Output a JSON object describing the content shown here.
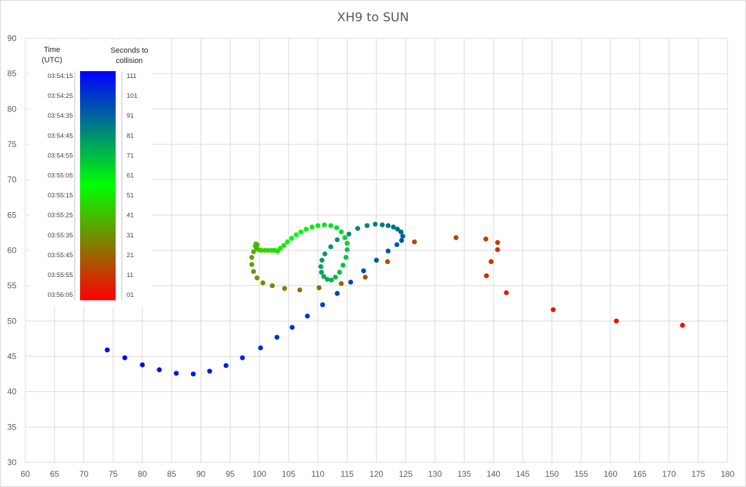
{
  "chart_data": {
    "type": "scatter",
    "title": "XH9 to SUN",
    "xlabel": "",
    "ylabel": "",
    "xlim": [
      60,
      180
    ],
    "ylim": [
      30,
      90
    ],
    "xticks": [
      "60",
      "65",
      "70",
      "75",
      "80",
      "85",
      "90",
      "95",
      "100",
      "105",
      "110",
      "115",
      "120",
      "125",
      "130",
      "135",
      "140",
      "145",
      "150",
      "155",
      "160",
      "165",
      "170",
      "175",
      "180"
    ],
    "yticks": [
      "30",
      "35",
      "40",
      "45",
      "50",
      "55",
      "60",
      "65",
      "70",
      "75",
      "80",
      "85",
      "90"
    ],
    "grid": true,
    "legend": {
      "placement": "top-left",
      "time_header_line1": "Time",
      "time_header_line2": "(UTC)",
      "seconds_header_line1": "Seconds to",
      "seconds_header_line2": "collision",
      "time_labels": [
        "03:54:15",
        "03:54:25",
        "03:54:35",
        "03:54:45",
        "03:54:55",
        "03:55:05",
        "03:55:15",
        "03:55:25",
        "03:55:35",
        "03:55:45",
        "03:55:55",
        "03:56:05"
      ],
      "seconds_labels": [
        "111",
        "101",
        "91",
        "81",
        "71",
        "61",
        "51",
        "41",
        "31",
        "21",
        "11",
        "01"
      ],
      "gradient_colors": [
        "#0000ff",
        "#008080",
        "#00ff00",
        "#808000",
        "#ff0000"
      ]
    },
    "seconds_range": [
      111,
      1
    ],
    "points": [
      {
        "x": 74.0,
        "y": 45.9,
        "s": 111
      },
      {
        "x": 77.0,
        "y": 44.8,
        "s": 110
      },
      {
        "x": 80.0,
        "y": 43.8,
        "s": 109
      },
      {
        "x": 82.9,
        "y": 43.1,
        "s": 108
      },
      {
        "x": 85.8,
        "y": 42.6,
        "s": 107
      },
      {
        "x": 88.7,
        "y": 42.5,
        "s": 106
      },
      {
        "x": 91.5,
        "y": 42.9,
        "s": 105
      },
      {
        "x": 94.3,
        "y": 43.7,
        "s": 104
      },
      {
        "x": 97.1,
        "y": 44.8,
        "s": 103
      },
      {
        "x": 100.2,
        "y": 46.2,
        "s": 102
      },
      {
        "x": 103.0,
        "y": 47.7,
        "s": 101
      },
      {
        "x": 105.6,
        "y": 49.1,
        "s": 100
      },
      {
        "x": 108.2,
        "y": 50.7,
        "s": 99
      },
      {
        "x": 110.8,
        "y": 52.3,
        "s": 98
      },
      {
        "x": 113.3,
        "y": 53.9,
        "s": 97
      },
      {
        "x": 115.6,
        "y": 55.5,
        "s": 96
      },
      {
        "x": 117.8,
        "y": 57.1,
        "s": 95
      },
      {
        "x": 120.0,
        "y": 58.6,
        "s": 94
      },
      {
        "x": 122.0,
        "y": 59.9,
        "s": 93
      },
      {
        "x": 123.5,
        "y": 60.8,
        "s": 92
      },
      {
        "x": 124.3,
        "y": 61.4,
        "s": 91
      },
      {
        "x": 124.5,
        "y": 62.0,
        "s": 90
      },
      {
        "x": 124.2,
        "y": 62.6,
        "s": 89
      },
      {
        "x": 123.6,
        "y": 63.0,
        "s": 88
      },
      {
        "x": 122.9,
        "y": 63.3,
        "s": 87
      },
      {
        "x": 122.0,
        "y": 63.5,
        "s": 86
      },
      {
        "x": 121.0,
        "y": 63.6,
        "s": 85
      },
      {
        "x": 119.8,
        "y": 63.7,
        "s": 84
      },
      {
        "x": 118.4,
        "y": 63.5,
        "s": 83
      },
      {
        "x": 116.8,
        "y": 63.1,
        "s": 82
      },
      {
        "x": 115.3,
        "y": 62.3,
        "s": 81
      },
      {
        "x": 113.3,
        "y": 61.5,
        "s": 80
      },
      {
        "x": 112.2,
        "y": 60.5,
        "s": 79
      },
      {
        "x": 111.2,
        "y": 59.5,
        "s": 78
      },
      {
        "x": 110.7,
        "y": 58.6,
        "s": 77
      },
      {
        "x": 110.5,
        "y": 57.7,
        "s": 76
      },
      {
        "x": 110.6,
        "y": 56.9,
        "s": 75
      },
      {
        "x": 111.0,
        "y": 56.3,
        "s": 74
      },
      {
        "x": 111.6,
        "y": 55.9,
        "s": 73
      },
      {
        "x": 112.3,
        "y": 55.8,
        "s": 72
      },
      {
        "x": 113.0,
        "y": 56.2,
        "s": 71
      },
      {
        "x": 113.7,
        "y": 56.9,
        "s": 70
      },
      {
        "x": 114.3,
        "y": 57.9,
        "s": 69
      },
      {
        "x": 114.8,
        "y": 59.0,
        "s": 68
      },
      {
        "x": 115.0,
        "y": 60.1,
        "s": 67
      },
      {
        "x": 115.0,
        "y": 61.0,
        "s": 66
      },
      {
        "x": 114.6,
        "y": 61.8,
        "s": 65
      },
      {
        "x": 114.0,
        "y": 62.6,
        "s": 64
      },
      {
        "x": 113.2,
        "y": 63.2,
        "s": 63
      },
      {
        "x": 112.2,
        "y": 63.5,
        "s": 62
      },
      {
        "x": 111.1,
        "y": 63.6,
        "s": 61
      },
      {
        "x": 110.0,
        "y": 63.5,
        "s": 60
      },
      {
        "x": 109.0,
        "y": 63.3,
        "s": 59
      },
      {
        "x": 108.0,
        "y": 63.0,
        "s": 58
      },
      {
        "x": 107.1,
        "y": 62.6,
        "s": 57
      },
      {
        "x": 106.3,
        "y": 62.2,
        "s": 56
      },
      {
        "x": 105.5,
        "y": 61.7,
        "s": 55
      },
      {
        "x": 104.8,
        "y": 61.2,
        "s": 54
      },
      {
        "x": 104.2,
        "y": 60.7,
        "s": 53
      },
      {
        "x": 103.6,
        "y": 60.3,
        "s": 52
      },
      {
        "x": 103.1,
        "y": 59.9,
        "s": 51
      },
      {
        "x": 102.6,
        "y": 60.0,
        "s": 50
      },
      {
        "x": 102.1,
        "y": 60.0,
        "s": 49
      },
      {
        "x": 101.5,
        "y": 60.0,
        "s": 48
      },
      {
        "x": 100.9,
        "y": 60.0,
        "s": 47
      },
      {
        "x": 100.3,
        "y": 60.0,
        "s": 46
      },
      {
        "x": 99.8,
        "y": 60.1,
        "s": 45
      },
      {
        "x": 99.5,
        "y": 60.3,
        "s": 44
      },
      {
        "x": 99.3,
        "y": 60.6,
        "s": 43
      },
      {
        "x": 99.4,
        "y": 60.9,
        "s": 42
      },
      {
        "x": 99.6,
        "y": 60.8,
        "s": 41
      },
      {
        "x": 99.5,
        "y": 60.4,
        "s": 40
      },
      {
        "x": 99.0,
        "y": 59.8,
        "s": 38
      },
      {
        "x": 98.7,
        "y": 59.0,
        "s": 37
      },
      {
        "x": 98.7,
        "y": 58.0,
        "s": 36
      },
      {
        "x": 99.0,
        "y": 57.0,
        "s": 34
      },
      {
        "x": 99.6,
        "y": 56.1,
        "s": 33
      },
      {
        "x": 100.6,
        "y": 55.4,
        "s": 31
      },
      {
        "x": 102.2,
        "y": 55.0,
        "s": 29
      },
      {
        "x": 104.3,
        "y": 54.6,
        "s": 27
      },
      {
        "x": 106.9,
        "y": 54.4,
        "s": 25
      },
      {
        "x": 110.2,
        "y": 54.7,
        "s": 23
      },
      {
        "x": 114.0,
        "y": 55.3,
        "s": 21
      },
      {
        "x": 118.1,
        "y": 56.2,
        "s": 19
      },
      {
        "x": 121.9,
        "y": 58.4,
        "s": 18
      },
      {
        "x": 126.5,
        "y": 61.2,
        "s": 17
      },
      {
        "x": 133.6,
        "y": 61.8,
        "s": 15
      },
      {
        "x": 138.7,
        "y": 61.6,
        "s": 14
      },
      {
        "x": 140.7,
        "y": 61.1,
        "s": 13
      },
      {
        "x": 140.7,
        "y": 60.1,
        "s": 12
      },
      {
        "x": 139.6,
        "y": 58.4,
        "s": 11
      },
      {
        "x": 138.8,
        "y": 56.4,
        "s": 10
      },
      {
        "x": 142.2,
        "y": 54.0,
        "s": 8
      },
      {
        "x": 150.2,
        "y": 51.6,
        "s": 6
      },
      {
        "x": 161.0,
        "y": 50.0,
        "s": 4
      },
      {
        "x": 172.3,
        "y": 49.4,
        "s": 2
      }
    ]
  }
}
